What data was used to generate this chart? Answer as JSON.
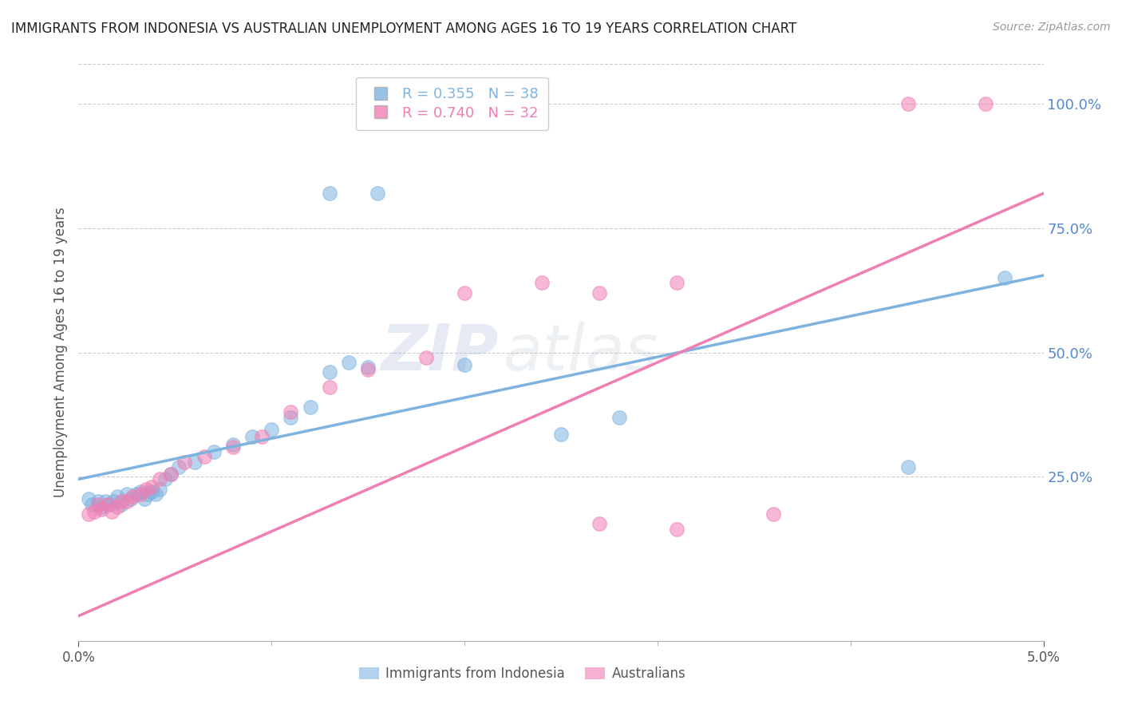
{
  "title": "IMMIGRANTS FROM INDONESIA VS AUSTRALIAN UNEMPLOYMENT AMONG AGES 16 TO 19 YEARS CORRELATION CHART",
  "source": "Source: ZipAtlas.com",
  "ylabel": "Unemployment Among Ages 16 to 19 years",
  "right_yticks": [
    0.25,
    0.5,
    0.75,
    1.0
  ],
  "right_yticklabels": [
    "25.0%",
    "50.0%",
    "75.0%",
    "100.0%"
  ],
  "legend_blue_label": "Immigrants from Indonesia",
  "legend_pink_label": "Australians",
  "legend_blue_R": "R = 0.355",
  "legend_blue_N": "N = 38",
  "legend_pink_R": "R = 0.740",
  "legend_pink_N": "N = 32",
  "blue_color": "#7EB3E0",
  "pink_color": "#F07EB3",
  "watermark_zip": "ZIP",
  "watermark_atlas": "atlas",
  "blue_scatter_x": [
    0.0005,
    0.0007,
    0.001,
    0.0012,
    0.0014,
    0.0016,
    0.0018,
    0.002,
    0.0022,
    0.0025,
    0.0027,
    0.003,
    0.0032,
    0.0034,
    0.0036,
    0.0038,
    0.004,
    0.0042,
    0.0045,
    0.0048,
    0.0052,
    0.006,
    0.007,
    0.008,
    0.009,
    0.01,
    0.011,
    0.012,
    0.013,
    0.014,
    0.015,
    0.013,
    0.0155,
    0.02,
    0.025,
    0.028,
    0.043,
    0.048
  ],
  "blue_scatter_y": [
    0.205,
    0.195,
    0.2,
    0.19,
    0.2,
    0.195,
    0.2,
    0.21,
    0.195,
    0.215,
    0.205,
    0.215,
    0.22,
    0.205,
    0.215,
    0.22,
    0.215,
    0.225,
    0.245,
    0.255,
    0.27,
    0.28,
    0.3,
    0.315,
    0.33,
    0.345,
    0.37,
    0.39,
    0.46,
    0.48,
    0.47,
    0.82,
    0.82,
    0.475,
    0.335,
    0.37,
    0.27,
    0.65
  ],
  "pink_scatter_x": [
    0.0005,
    0.0008,
    0.001,
    0.0012,
    0.0015,
    0.0017,
    0.002,
    0.0022,
    0.0025,
    0.0028,
    0.0032,
    0.0035,
    0.0038,
    0.0042,
    0.0048,
    0.0055,
    0.0065,
    0.008,
    0.0095,
    0.011,
    0.013,
    0.015,
    0.018,
    0.02,
    0.024,
    0.027,
    0.031,
    0.036,
    0.043,
    0.047,
    0.027,
    0.031
  ],
  "pink_scatter_y": [
    0.175,
    0.18,
    0.195,
    0.185,
    0.195,
    0.18,
    0.19,
    0.2,
    0.2,
    0.21,
    0.215,
    0.225,
    0.23,
    0.245,
    0.255,
    0.28,
    0.29,
    0.31,
    0.33,
    0.38,
    0.43,
    0.465,
    0.49,
    0.62,
    0.64,
    0.155,
    0.145,
    0.175,
    1.0,
    1.0,
    0.62,
    0.64
  ],
  "blue_line_x": [
    0.0,
    0.05
  ],
  "blue_line_y": [
    0.245,
    0.655
  ],
  "pink_line_x": [
    0.0,
    0.05
  ],
  "pink_line_y": [
    -0.03,
    0.82
  ],
  "xlim": [
    0.0,
    0.05
  ],
  "ylim": [
    -0.08,
    1.08
  ],
  "background_color": "#FFFFFF",
  "grid_color": "#CCCCCC",
  "title_color": "#222222",
  "axis_label_color": "#555555",
  "right_tick_color": "#5588CC"
}
